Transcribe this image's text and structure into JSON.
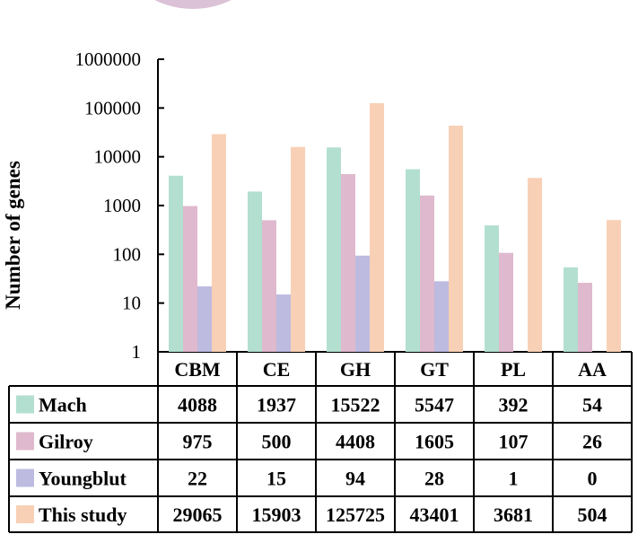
{
  "chart_data": {
    "type": "bar",
    "ylabel": "Number of genes",
    "yscale": "log",
    "ylim": [
      1,
      1000000
    ],
    "yticks": [
      "1",
      "10",
      "100",
      "1000",
      "10000",
      "100000",
      "1000000"
    ],
    "categories": [
      "CBM",
      "CE",
      "GH",
      "GT",
      "PL",
      "AA"
    ],
    "series": [
      {
        "name": "Mach",
        "color": "#b3dfd0",
        "values": [
          4088,
          1937,
          15522,
          5547,
          392,
          54
        ]
      },
      {
        "name": "Gilroy",
        "color": "#dfb9cd",
        "values": [
          975,
          500,
          4408,
          1605,
          107,
          26
        ]
      },
      {
        "name": "Youngblut",
        "color": "#bdbbe0",
        "values": [
          22,
          15,
          94,
          28,
          1,
          0
        ]
      },
      {
        "name": "This study",
        "color": "#f8d0b6",
        "values": [
          29065,
          15903,
          125725,
          43401,
          3681,
          504
        ]
      }
    ],
    "legend": "table rows below the plot"
  }
}
